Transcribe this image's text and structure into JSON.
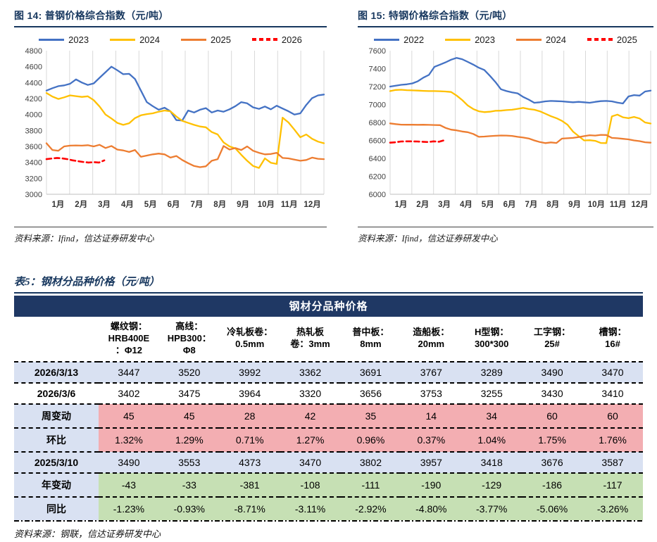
{
  "figures": [
    {
      "caption": "图 14:  普钢价格综合指数（元/吨）",
      "source": "资料来源：Ifind，信达证券研发中心"
    },
    {
      "caption": "图 15:  特钢价格综合指数（元/吨）",
      "source": "资料来源：Ifind，信达证券研发中心"
    }
  ],
  "chart_data": [
    {
      "type": "line",
      "title": "普钢价格综合指数（元/吨）",
      "x_categories": [
        "1月",
        "2月",
        "3月",
        "4月",
        "5月",
        "6月",
        "7月",
        "8月",
        "9月",
        "10月",
        "11月",
        "12月"
      ],
      "ylim": [
        3000,
        4800
      ],
      "ytick_step": 200,
      "grid": "vertical",
      "legend_position": "top",
      "series": [
        {
          "name": "2023",
          "color": "#4472C4",
          "style": "solid",
          "months_span": 12,
          "values": [
            4300,
            4330,
            4355,
            4365,
            4385,
            4440,
            4400,
            4370,
            4390,
            4460,
            4530,
            4600,
            4555,
            4505,
            4510,
            4445,
            4300,
            4155,
            4105,
            4060,
            4085,
            4040,
            3930,
            3925,
            4050,
            4025,
            4060,
            4080,
            4025,
            4050,
            4035,
            4065,
            4105,
            4155,
            4140,
            4090,
            4070,
            4100,
            4065,
            4110,
            4075,
            4040,
            4000,
            4015,
            4120,
            4205,
            4240,
            4250
          ]
        },
        {
          "name": "2024",
          "color": "#FFC000",
          "style": "solid",
          "months_span": 12,
          "values": [
            4270,
            4225,
            4195,
            4215,
            4240,
            4230,
            4220,
            4228,
            4180,
            4100,
            4000,
            3950,
            3895,
            3870,
            3890,
            3955,
            3990,
            4005,
            4015,
            4035,
            4050,
            4040,
            3975,
            3920,
            3895,
            3870,
            3850,
            3840,
            3780,
            3750,
            3650,
            3600,
            3575,
            3495,
            3420,
            3355,
            3330,
            3450,
            3395,
            3380,
            3960,
            3900,
            3810,
            3715,
            3750,
            3695,
            3660,
            3640
          ]
        },
        {
          "name": "2025",
          "color": "#ED7D31",
          "style": "solid",
          "months_span": 12,
          "values": [
            3640,
            3555,
            3545,
            3600,
            3610,
            3612,
            3610,
            3615,
            3600,
            3620,
            3580,
            3605,
            3560,
            3550,
            3530,
            3555,
            3470,
            3485,
            3500,
            3510,
            3500,
            3460,
            3480,
            3430,
            3390,
            3355,
            3340,
            3350,
            3420,
            3440,
            3605,
            3560,
            3580,
            3555,
            3600,
            3545,
            3520,
            3500,
            3505,
            3520,
            3455,
            3450,
            3435,
            3420,
            3430,
            3460,
            3445,
            3440
          ]
        },
        {
          "name": "2026",
          "color": "#FF0000",
          "style": "dashed",
          "months_span": 2.5,
          "values": [
            3440,
            3448,
            3455,
            3450,
            3440,
            3425,
            3415,
            3405,
            3398,
            3402,
            3398,
            3425
          ]
        }
      ]
    },
    {
      "type": "line",
      "title": "特钢价格综合指数（元/吨）",
      "x_categories": [
        "1月",
        "2月",
        "3月",
        "4月",
        "5月",
        "6月",
        "7月",
        "8月",
        "9月",
        "10月",
        "11月",
        "12月"
      ],
      "ylim": [
        6000,
        7600
      ],
      "ytick_step": 200,
      "grid": "vertical",
      "legend_position": "top",
      "series": [
        {
          "name": "2022",
          "color": "#4472C4",
          "style": "solid",
          "months_span": 12,
          "values": [
            7200,
            7210,
            7220,
            7225,
            7235,
            7260,
            7300,
            7330,
            7420,
            7445,
            7470,
            7500,
            7520,
            7505,
            7475,
            7445,
            7410,
            7385,
            7320,
            7250,
            7170,
            7150,
            7135,
            7125,
            7085,
            7055,
            7020,
            7025,
            7035,
            7040,
            7038,
            7035,
            7030,
            7025,
            7030,
            7025,
            7020,
            7030,
            7038,
            7040,
            7035,
            7022,
            7012,
            7090,
            7105,
            7100,
            7145,
            7155
          ]
        },
        {
          "name": "2023",
          "color": "#FFC000",
          "style": "solid",
          "months_span": 12,
          "values": [
            7150,
            7162,
            7165,
            7160,
            7158,
            7155,
            7152,
            7150,
            7150,
            7148,
            7145,
            7140,
            7100,
            7050,
            6990,
            6950,
            6925,
            6915,
            6920,
            6930,
            6932,
            6938,
            6942,
            6952,
            6962,
            6950,
            6942,
            6925,
            6898,
            6870,
            6848,
            6818,
            6775,
            6698,
            6648,
            6600,
            6602,
            6595,
            6572,
            6570,
            6868,
            6888,
            6858,
            6848,
            6862,
            6845,
            6800,
            6788
          ]
        },
        {
          "name": "2024",
          "color": "#ED7D31",
          "style": "solid",
          "months_span": 12,
          "values": [
            6790,
            6782,
            6776,
            6775,
            6775,
            6774,
            6775,
            6773,
            6772,
            6770,
            6740,
            6720,
            6712,
            6700,
            6692,
            6672,
            6640,
            6643,
            6648,
            6652,
            6655,
            6654,
            6650,
            6640,
            6632,
            6622,
            6600,
            6582,
            6570,
            6578,
            6572,
            6620,
            6624,
            6628,
            6638,
            6648,
            6658,
            6654,
            6662,
            6660,
            6628,
            6624,
            6618,
            6612,
            6600,
            6592,
            6580,
            6575
          ]
        },
        {
          "name": "2025",
          "color": "#FF0000",
          "style": "dashed",
          "months_span": 2.5,
          "values": [
            6575,
            6580,
            6588,
            6590,
            6590,
            6588,
            6585,
            6582,
            6590,
            6585,
            6602
          ]
        }
      ]
    }
  ],
  "table": {
    "caption": "表5：钢材分品种价格（元/吨）",
    "band_title": "钢材分品种价格",
    "columns": [
      "螺纹钢：\nHRB400E\n：Φ12",
      "高线：\nHPB300：\nΦ8",
      "冷轧板卷：\n0.5mm",
      "热轧板\n卷：3mm",
      "普中板：\n8mm",
      "造船板：\n20mm",
      "H型钢：\n300*300",
      "工字钢：\n25#",
      "槽钢：\n16#"
    ],
    "rows": [
      {
        "label": "2026/3/13",
        "style": "highlight-blue",
        "values": [
          "3447",
          "3520",
          "3992",
          "3362",
          "3691",
          "3767",
          "3289",
          "3490",
          "3470"
        ]
      },
      {
        "label": "2026/3/6",
        "style": "plain",
        "values": [
          "3402",
          "3475",
          "3964",
          "3320",
          "3656",
          "3753",
          "3255",
          "3430",
          "3410"
        ]
      },
      {
        "label": "周变动",
        "style": "pink",
        "values": [
          "45",
          "45",
          "28",
          "42",
          "35",
          "14",
          "34",
          "60",
          "60"
        ]
      },
      {
        "label": "环比",
        "style": "pink",
        "values": [
          "1.32%",
          "1.29%",
          "0.71%",
          "1.27%",
          "0.96%",
          "0.37%",
          "1.04%",
          "1.75%",
          "1.76%"
        ]
      },
      {
        "label": "2025/3/10",
        "style": "highlight-blue",
        "values": [
          "3490",
          "3553",
          "4373",
          "3470",
          "3802",
          "3957",
          "3418",
          "3676",
          "3587"
        ]
      },
      {
        "label": "年变动",
        "style": "green",
        "values": [
          "-43",
          "-33",
          "-381",
          "-108",
          "-111",
          "-190",
          "-129",
          "-186",
          "-117"
        ]
      },
      {
        "label": "同比",
        "style": "green",
        "values": [
          "-1.23%",
          "-0.93%",
          "-8.71%",
          "-3.11%",
          "-2.92%",
          "-4.80%",
          "-3.77%",
          "-5.06%",
          "-3.26%"
        ]
      }
    ],
    "source": "资料来源：钢联，信达证券研发中心"
  },
  "colors": {
    "navy": "#1F3864",
    "title_navy": "#17375E",
    "row_blue": "#D9E1F2",
    "row_pink": "#F3AEB2",
    "row_green": "#C6E0B4",
    "series_blue": "#4472C4",
    "series_gold": "#FFC000",
    "series_orange": "#ED7D31",
    "series_red": "#FF0000",
    "gridline": "#D9D9D9"
  }
}
